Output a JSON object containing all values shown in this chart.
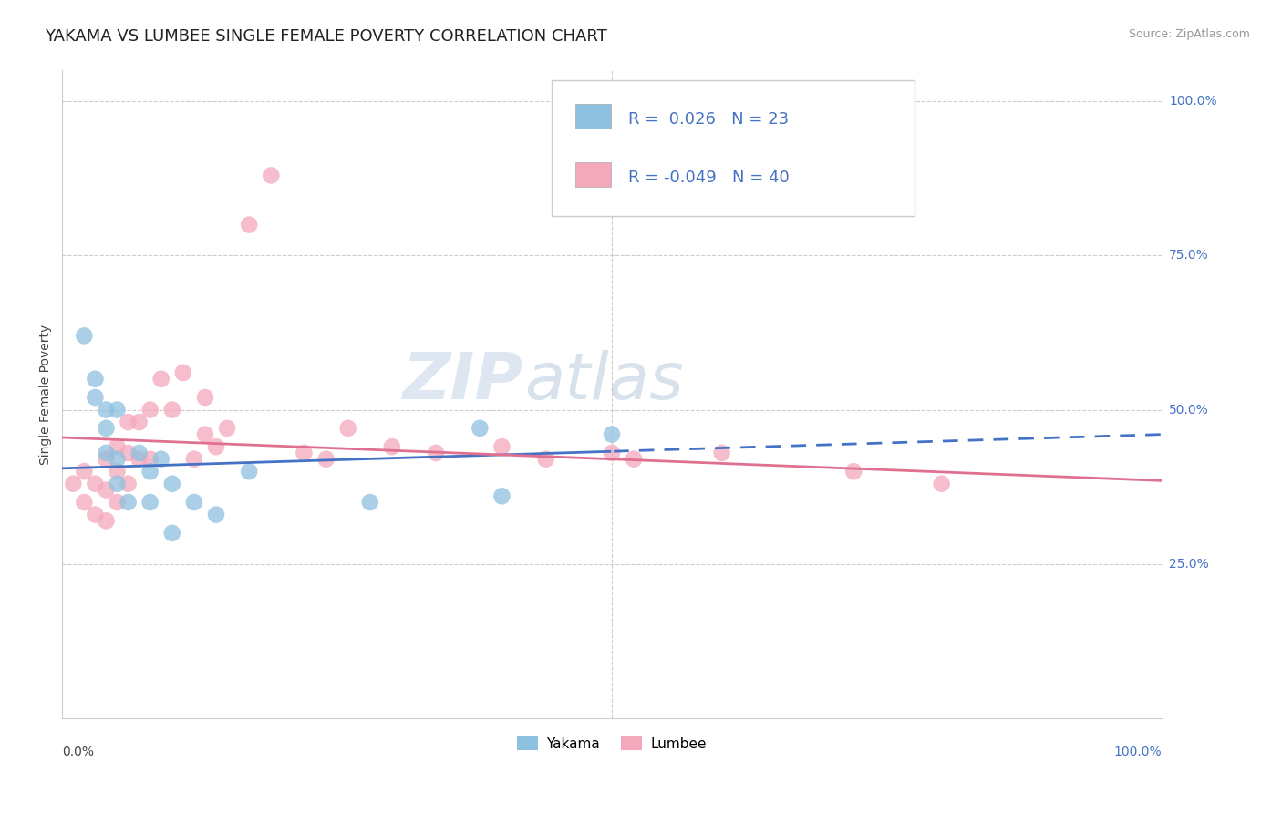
{
  "title": "YAKAMA VS LUMBEE SINGLE FEMALE POVERTY CORRELATION CHART",
  "source": "Source: ZipAtlas.com",
  "ylabel": "Single Female Poverty",
  "yakama_R": 0.026,
  "yakama_N": 23,
  "lumbee_R": -0.049,
  "lumbee_N": 40,
  "yakama_color": "#8ec0e0",
  "lumbee_color": "#f4a8bc",
  "yakama_line_color": "#4472c4",
  "lumbee_line_color": "#e07090",
  "watermark_zip": "ZIP",
  "watermark_atlas": "atlas",
  "xlim": [
    0.0,
    1.0
  ],
  "ylim": [
    0.0,
    1.0
  ],
  "background_color": "#ffffff",
  "grid_color": "#cccccc",
  "title_fontsize": 13,
  "legend_fontsize": 13,
  "right_label_color": "#4472c4",
  "yakama_x": [
    0.02,
    0.03,
    0.03,
    0.04,
    0.04,
    0.04,
    0.05,
    0.05,
    0.05,
    0.06,
    0.07,
    0.08,
    0.08,
    0.09,
    0.1,
    0.1,
    0.12,
    0.14,
    0.17,
    0.28,
    0.38,
    0.4,
    0.5
  ],
  "yakama_y": [
    0.62,
    0.55,
    0.52,
    0.5,
    0.47,
    0.43,
    0.5,
    0.42,
    0.38,
    0.35,
    0.43,
    0.4,
    0.35,
    0.42,
    0.38,
    0.3,
    0.35,
    0.33,
    0.4,
    0.35,
    0.47,
    0.36,
    0.46
  ],
  "lumbee_x": [
    0.01,
    0.02,
    0.02,
    0.03,
    0.03,
    0.04,
    0.04,
    0.04,
    0.05,
    0.05,
    0.05,
    0.06,
    0.06,
    0.06,
    0.07,
    0.07,
    0.08,
    0.08,
    0.09,
    0.1,
    0.11,
    0.12,
    0.13,
    0.13,
    0.14,
    0.15,
    0.17,
    0.19,
    0.22,
    0.24,
    0.26,
    0.3,
    0.34,
    0.4,
    0.44,
    0.5,
    0.52,
    0.6,
    0.72,
    0.8
  ],
  "lumbee_y": [
    0.38,
    0.35,
    0.4,
    0.33,
    0.38,
    0.32,
    0.37,
    0.42,
    0.35,
    0.4,
    0.44,
    0.38,
    0.43,
    0.48,
    0.42,
    0.48,
    0.42,
    0.5,
    0.55,
    0.5,
    0.56,
    0.42,
    0.46,
    0.52,
    0.44,
    0.47,
    0.8,
    0.88,
    0.43,
    0.42,
    0.47,
    0.44,
    0.43,
    0.44,
    0.42,
    0.43,
    0.42,
    0.43,
    0.4,
    0.38
  ]
}
